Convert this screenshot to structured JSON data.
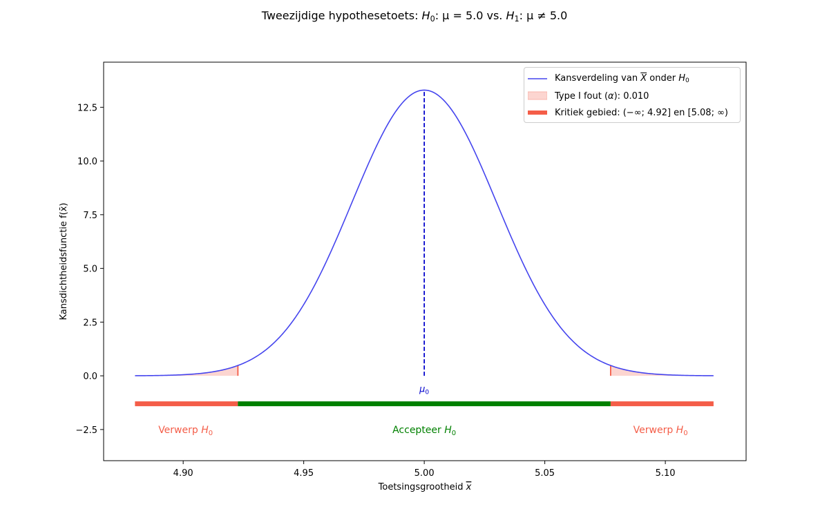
{
  "chart_data": {
    "type": "line",
    "title": "Tweezijdige hypothesetoets: H0: μ = 5.0 vs. H1: μ ≠ 5.0",
    "title_parts": {
      "prefix": "Tweezijdige hypothesetoets: ",
      "h0": "H",
      "h0_sub": "0",
      "h0_rest": ": μ = 5.0 vs. ",
      "h1": "H",
      "h1_sub": "1",
      "h1_rest": ": μ ≠ 5.0"
    },
    "xlabel": "Toetsingsgrootheid x̄",
    "xlabel_text": "Toetsingsgrootheid ",
    "xlabel_symbol": "x",
    "ylabel": "Kansdichtheidsfunctie f(x̄)",
    "xlim": [
      4.867,
      5.1335
    ],
    "ylim": [
      -3.95,
      14.6
    ],
    "x_ticks": [
      4.9,
      4.95,
      5.0,
      5.05,
      5.1
    ],
    "x_tick_labels": [
      "4.90",
      "4.95",
      "5.00",
      "5.05",
      "5.10"
    ],
    "y_ticks": [
      -2.5,
      0.0,
      2.5,
      5.0,
      7.5,
      10.0,
      12.5
    ],
    "y_tick_labels": [
      "−2.5",
      "0.0",
      "2.5",
      "5.0",
      "7.5",
      "10.0",
      "12.5"
    ],
    "grid": false,
    "legend_placement": "top-right",
    "distribution": {
      "name": "Kansverdeling van X̄ onder H0",
      "mean": 5.0,
      "sd": 0.03,
      "x_range": [
        4.88,
        5.12
      ],
      "peak_density": 13.3
    },
    "critical_values": [
      4.9227,
      5.0773
    ],
    "critical_labels": [
      "4.92",
      "5.08"
    ],
    "alpha": 0.01,
    "mu0_label": "μ0",
    "regions": [
      {
        "name": "Verwerp H0",
        "from": 4.88,
        "to": 4.9227,
        "y": -1.3,
        "label_x": 4.901
      },
      {
        "name": "Accepteer H0",
        "from": 4.9227,
        "to": 5.0773,
        "y": -1.3,
        "label_x": 5.0
      },
      {
        "name": "Verwerp H0",
        "from": 5.0773,
        "to": 5.12,
        "y": -1.3,
        "label_x": 5.098
      }
    ],
    "region_label_y": -2.5,
    "colors": {
      "curve": "#4444ee",
      "mean_line": "#0000cc",
      "reject": "#f45d48",
      "reject_fill": "#fcd5d0",
      "accept": "#008000"
    }
  },
  "legend": {
    "items": [
      {
        "text": "Kansverdeling van ",
        "symbol": "X",
        "text2": " onder ",
        "h": "H",
        "sub": "0"
      },
      {
        "text": "Type I fout (",
        "symbol": "α",
        "text2": "): 0.010"
      },
      {
        "text": "Kritiek gebied: (−∞; 4.92] en [5.08; ∞)"
      }
    ]
  },
  "region_labels": {
    "reject": "Verwerp ",
    "accept": "Accepteer ",
    "h": "H",
    "sub": "0"
  }
}
